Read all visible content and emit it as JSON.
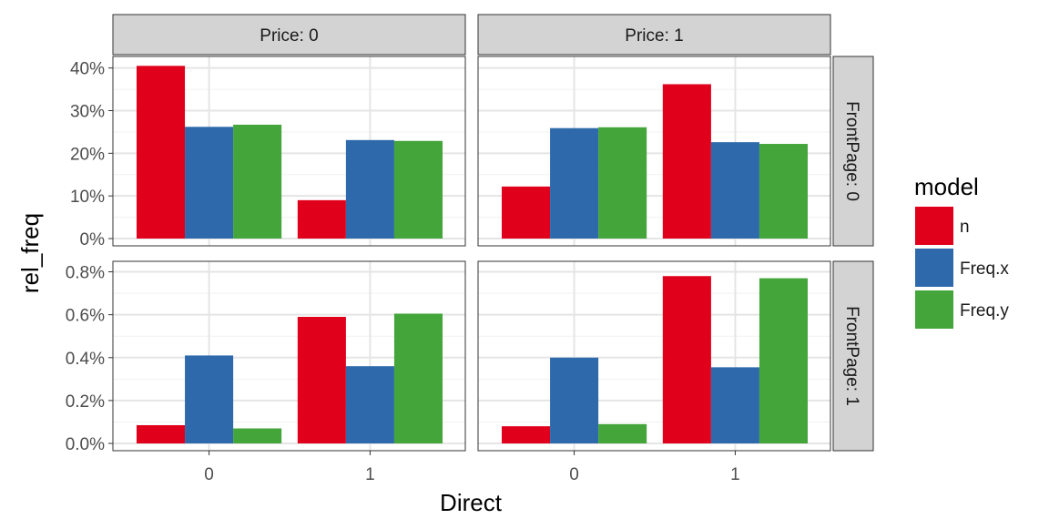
{
  "chart_data": {
    "type": "bar",
    "xlabel": "Direct",
    "ylabel": "rel_freq",
    "categories": [
      "0",
      "1"
    ],
    "legend": {
      "title": "model",
      "position": "right",
      "entries": [
        {
          "name": "n",
          "color": "#E0001B"
        },
        {
          "name": "Freq.x",
          "color": "#2E6AAB"
        },
        {
          "name": "Freq.y",
          "color": "#43A53A"
        }
      ]
    },
    "col_strips": [
      "Price: 0",
      "Price: 1"
    ],
    "row_strips": [
      "FrontPage: 0",
      "FrontPage: 1"
    ],
    "grid": true,
    "rows": [
      {
        "ylim": [
          0,
          41
        ],
        "ticks": [
          {
            "value": 0,
            "label": "0%"
          },
          {
            "value": 10,
            "label": "10%"
          },
          {
            "value": 20,
            "label": "20%"
          },
          {
            "value": 30,
            "label": "30%"
          },
          {
            "value": 40,
            "label": "40%"
          }
        ]
      },
      {
        "ylim": [
          0,
          0.815
        ],
        "ticks": [
          {
            "value": 0,
            "label": "0.0%"
          },
          {
            "value": 0.2,
            "label": "0.2%"
          },
          {
            "value": 0.4,
            "label": "0.4%"
          },
          {
            "value": 0.6,
            "label": "0.6%"
          },
          {
            "value": 0.8,
            "label": "0.8%"
          }
        ]
      }
    ],
    "panels": [
      {
        "row": 0,
        "col": 0,
        "series": [
          {
            "name": "n",
            "values": [
              40.5,
              9.0
            ]
          },
          {
            "name": "Freq.x",
            "values": [
              26.2,
              23.1
            ]
          },
          {
            "name": "Freq.y",
            "values": [
              26.7,
              22.9
            ]
          }
        ]
      },
      {
        "row": 0,
        "col": 1,
        "series": [
          {
            "name": "n",
            "values": [
              12.2,
              36.2
            ]
          },
          {
            "name": "Freq.x",
            "values": [
              25.9,
              22.6
            ]
          },
          {
            "name": "Freq.y",
            "values": [
              26.1,
              22.2
            ]
          }
        ]
      },
      {
        "row": 1,
        "col": 0,
        "series": [
          {
            "name": "n",
            "values": [
              0.085,
              0.59
            ]
          },
          {
            "name": "Freq.x",
            "values": [
              0.41,
              0.36
            ]
          },
          {
            "name": "Freq.y",
            "values": [
              0.07,
              0.605
            ]
          }
        ]
      },
      {
        "row": 1,
        "col": 1,
        "series": [
          {
            "name": "n",
            "values": [
              0.08,
              0.78
            ]
          },
          {
            "name": "Freq.x",
            "values": [
              0.4,
              0.355
            ]
          },
          {
            "name": "Freq.y",
            "values": [
              0.09,
              0.77
            ]
          }
        ]
      }
    ]
  }
}
